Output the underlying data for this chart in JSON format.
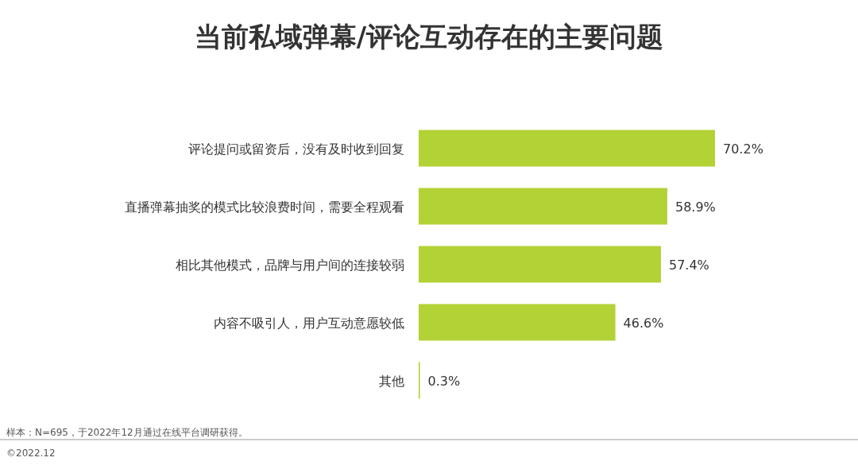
{
  "chart_data": {
    "type": "bar",
    "orientation": "horizontal",
    "title": "当前私域弹幕/评论互动存在的主要问题",
    "categories": [
      "评论提问或留资后，没有及时收到回复",
      "直播弹幕抽奖的模式比较浪费时间，需要全程观看",
      "相比其他模式，品牌与用户间的连接较弱",
      "内容不吸引人，用户互动意愿较低",
      "其他"
    ],
    "values": [
      70.2,
      58.9,
      57.4,
      46.6,
      0.3
    ],
    "value_labels": [
      "70.2%",
      "58.9%",
      "57.4%",
      "46.6%",
      "0.3%"
    ],
    "color": "#b2d235",
    "annotations": [
      "样本：N=695，于2022年12月通过在线平台调研获得。",
      "©2022.12"
    ]
  }
}
